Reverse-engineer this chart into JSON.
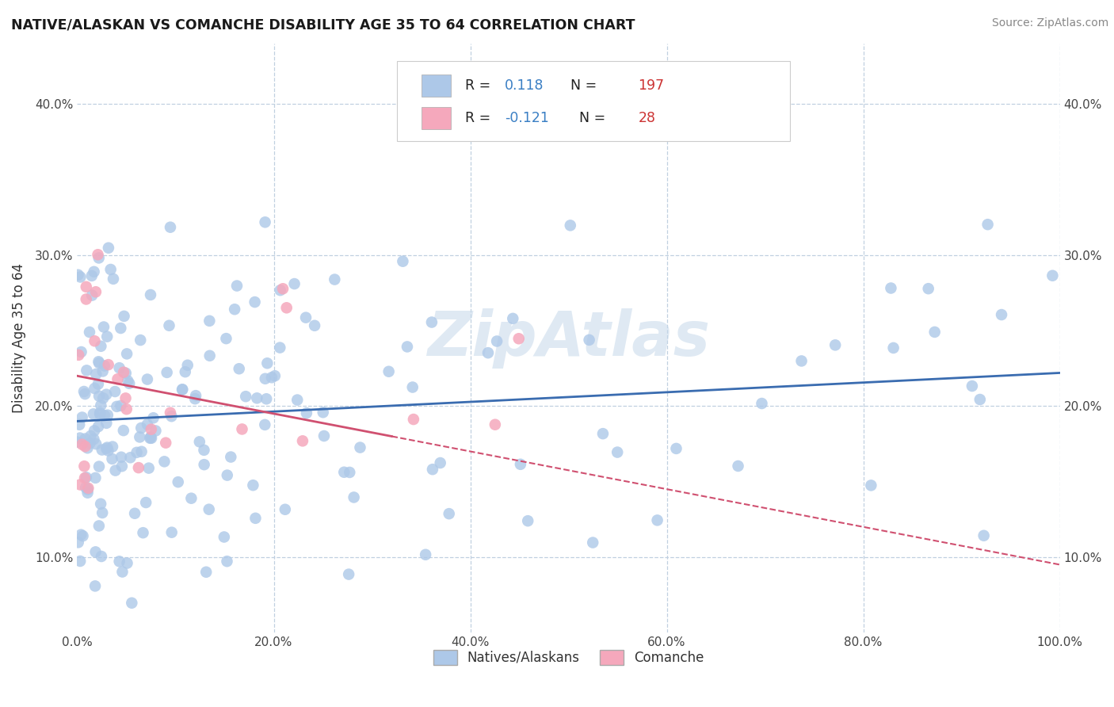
{
  "title": "NATIVE/ALASKAN VS COMANCHE DISABILITY AGE 35 TO 64 CORRELATION CHART",
  "source_text": "Source: ZipAtlas.com",
  "ylabel": "Disability Age 35 to 64",
  "legend_bottom": [
    "Natives/Alaskans",
    "Comanche"
  ],
  "r_native": 0.118,
  "n_native": 197,
  "r_comanche": -0.121,
  "n_comanche": 28,
  "xlim": [
    0.0,
    1.0
  ],
  "ylim": [
    0.05,
    0.44
  ],
  "xticks": [
    0.0,
    0.2,
    0.4,
    0.6,
    0.8,
    1.0
  ],
  "yticks": [
    0.1,
    0.2,
    0.3,
    0.4
  ],
  "xtick_labels": [
    "0.0%",
    "20.0%",
    "40.0%",
    "60.0%",
    "80.0%",
    "100.0%"
  ],
  "ytick_labels": [
    "10.0%",
    "20.0%",
    "30.0%",
    "40.0%"
  ],
  "color_native": "#adc8e8",
  "color_comanche": "#f5a8bc",
  "line_color_native": "#3a6cb0",
  "line_color_comanche": "#d05070",
  "background_color": "#ffffff",
  "grid_color": "#c0d0e0",
  "watermark": "ZipAtlas"
}
